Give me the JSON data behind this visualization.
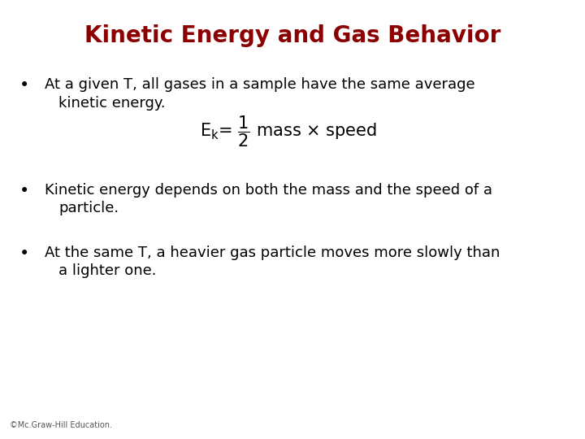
{
  "title": "Kinetic Energy and Gas Behavior",
  "title_color": "#8B0000",
  "title_fontsize": 20,
  "title_bold": true,
  "background_color": "#ffffff",
  "bullet_color": "#000000",
  "bullet_fontsize": 13,
  "bullet1_line1": "At a given T, all gases in a sample have the same average",
  "bullet1_line2": "kinetic energy.",
  "bullet2_line1": "Kinetic energy depends on both the mass and the speed of a",
  "bullet2_line2": "particle.",
  "bullet3_line1": "At the same T, a heavier gas particle moves more slowly than",
  "bullet3_line2": "a lighter one.",
  "equation_fontsize": 14,
  "copyright_text": "©Mc.Graw-Hill Education.",
  "copyright_fontsize": 7,
  "copyright_color": "#555555"
}
